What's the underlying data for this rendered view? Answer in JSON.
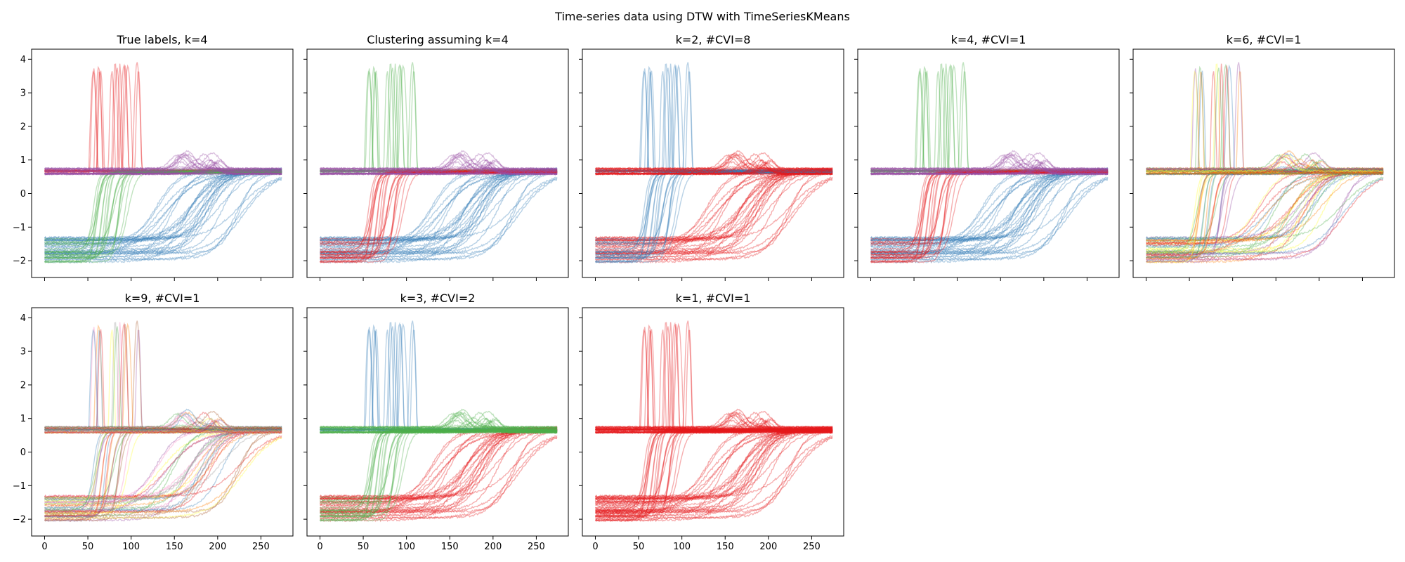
{
  "figure_title": "Time-series data using DTW with TimeSeriesKMeans",
  "palette": [
    "#e41a1c",
    "#377eb8",
    "#4daf4a",
    "#984ea3",
    "#ff7f00",
    "#ffff33",
    "#a65628",
    "#f781bf",
    "#999999"
  ],
  "chart_data": [
    {
      "type": "line",
      "title": "True labels, k=4",
      "n_clusters_shown": 4,
      "color_order": [
        0,
        1,
        2,
        3
      ],
      "xlim": [
        -15,
        287
      ],
      "ylim": [
        -2.5,
        4.3
      ],
      "xticks": [
        0,
        50,
        100,
        150,
        200,
        250
      ],
      "yticks": [
        -2,
        -1,
        0,
        1,
        2,
        3,
        4
      ],
      "series": [
        {
          "values_note": "spike group",
          "spike_height": 3.9,
          "baseline": 0.65,
          "onset_range": [
            50,
            110
          ]
        },
        {
          "values_note": "slow rise group",
          "start_range": [
            -2.05,
            -1.3
          ],
          "end": 0.7,
          "rise_range": [
            110,
            230
          ]
        },
        {
          "values_note": "fast rise group",
          "start_range": [
            -2.05,
            -1.3
          ],
          "end": 0.65,
          "rise_range": [
            60,
            100
          ]
        },
        {
          "values_note": "bump group",
          "baseline": 0.65,
          "bump_height": 1.25,
          "bump_range": [
            150,
            205
          ]
        }
      ]
    },
    {
      "type": "line",
      "title": "Clustering assuming k=4",
      "n_clusters_shown": 4,
      "color_order": [
        2,
        1,
        0,
        3
      ],
      "xlim": [
        -15,
        287
      ],
      "ylim": [
        -2.5,
        4.3
      ],
      "xticks": [
        0,
        50,
        100,
        150,
        200,
        250
      ],
      "yticks": [
        -2,
        -1,
        0,
        1,
        2,
        3,
        4
      ]
    },
    {
      "type": "line",
      "title": "k=2, #CVI=8",
      "n_clusters_shown": 2,
      "color_order": [
        1,
        0,
        1,
        0
      ],
      "xlim": [
        -15,
        287
      ],
      "ylim": [
        -2.5,
        4.3
      ],
      "xticks": [
        0,
        50,
        100,
        150,
        200,
        250
      ],
      "yticks": [
        -2,
        -1,
        0,
        1,
        2,
        3,
        4
      ]
    },
    {
      "type": "line",
      "title": "k=4, #CVI=1",
      "n_clusters_shown": 4,
      "color_order": [
        2,
        1,
        0,
        3
      ],
      "xlim": [
        -15,
        287
      ],
      "ylim": [
        -2.5,
        4.3
      ],
      "xticks": [
        0,
        50,
        100,
        150,
        200,
        250
      ],
      "yticks": [
        -2,
        -1,
        0,
        1,
        2,
        3,
        4
      ]
    },
    {
      "type": "line",
      "title": "k=6, #CVI=1",
      "n_clusters_shown": 6,
      "color_order": [
        0,
        2,
        4,
        3,
        1,
        5
      ],
      "xlim": [
        -15,
        287
      ],
      "ylim": [
        -2.5,
        4.3
      ],
      "xticks": [
        0,
        50,
        100,
        150,
        200,
        250
      ],
      "yticks": [
        -2,
        -1,
        0,
        1,
        2,
        3,
        4
      ]
    },
    {
      "type": "line",
      "title": "k=9, #CVI=1",
      "n_clusters_shown": 9,
      "color_order": [
        6,
        4,
        1,
        7,
        0,
        8,
        5,
        2,
        3
      ],
      "xlim": [
        -15,
        287
      ],
      "ylim": [
        -2.5,
        4.3
      ],
      "xticks": [
        0,
        50,
        100,
        150,
        200,
        250
      ],
      "yticks": [
        -2,
        -1,
        0,
        1,
        2,
        3,
        4
      ]
    },
    {
      "type": "line",
      "title": "k=3, #CVI=2",
      "n_clusters_shown": 3,
      "color_order": [
        1,
        0,
        2,
        2
      ],
      "xlim": [
        -15,
        287
      ],
      "ylim": [
        -2.5,
        4.3
      ],
      "xticks": [
        0,
        50,
        100,
        150,
        200,
        250
      ],
      "yticks": [
        -2,
        -1,
        0,
        1,
        2,
        3,
        4
      ]
    },
    {
      "type": "line",
      "title": "k=1, #CVI=1",
      "n_clusters_shown": 1,
      "color_order": [
        0,
        0,
        0,
        0
      ],
      "xlim": [
        -15,
        287
      ],
      "ylim": [
        -2.5,
        4.3
      ],
      "xticks": [
        0,
        50,
        100,
        150,
        200,
        250
      ],
      "yticks": [
        -2,
        -1,
        0,
        1,
        2,
        3,
        4
      ]
    }
  ]
}
